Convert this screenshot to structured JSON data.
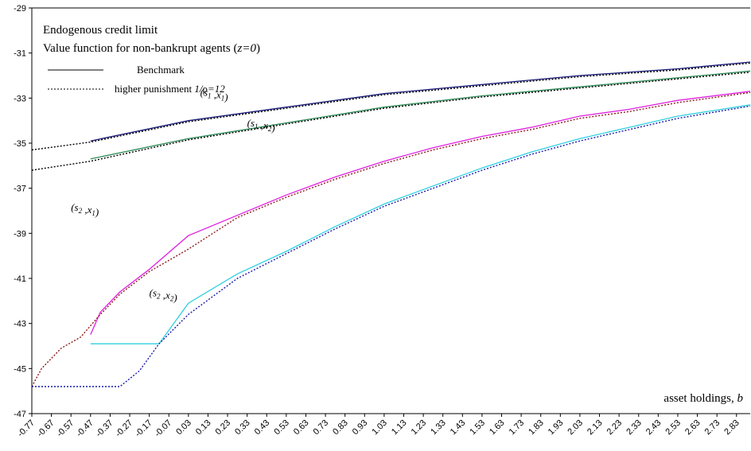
{
  "chart_data": {
    "type": "line",
    "title": "Endogenous credit limit",
    "subtitle_parts": [
      "Value function for non-bankrupt agents (",
      "z=0",
      ")"
    ],
    "xlabel_parts": [
      "asset holdings, ",
      "b"
    ],
    "ylabel": "",
    "xlim": [
      -0.77,
      2.9
    ],
    "ylim": [
      -47,
      -29
    ],
    "y_ticks": [
      -29,
      -31,
      -33,
      -35,
      -37,
      -39,
      -41,
      -43,
      -45,
      -47
    ],
    "x_ticks": [
      "-0.77",
      "-0.67",
      "-0.57",
      "-0.47",
      "-0.37",
      "-0.27",
      "-0.17",
      "-0.07",
      "0.03",
      "0.13",
      "0.23",
      "0.33",
      "0.43",
      "0.53",
      "0.63",
      "0.73",
      "0.83",
      "0.93",
      "1.03",
      "1.13",
      "1.23",
      "1.33",
      "1.43",
      "1.53",
      "1.63",
      "1.73",
      "1.83",
      "1.93",
      "2.03",
      "2.13",
      "2.23",
      "2.33",
      "2.43",
      "2.53",
      "2.63",
      "2.73",
      "2.83"
    ],
    "legend": {
      "placement": "top-left",
      "entries": [
        {
          "style": "solid",
          "label_parts": [
            "Benchmark"
          ]
        },
        {
          "style": "dotted",
          "label_parts": [
            "higher punishment ",
            "1/",
            "ρ",
            "=12"
          ]
        }
      ]
    },
    "colors": {
      "s1x1": "#1a1a7a",
      "s1x2": "#2e8b57",
      "s2x1": "#e020e0",
      "s2x2": "#30d0e0",
      "dotted_s2x2": "#1a1aaa",
      "dotted_s2x1": "#8b1a1a",
      "dotted_black": "#000000"
    },
    "series": [
      {
        "name": "(s1, x1)",
        "style": "solid",
        "color_key": "s1x1",
        "points": [
          [
            -0.47,
            -34.9
          ],
          [
            0.03,
            -34.0
          ],
          [
            0.53,
            -33.4
          ],
          [
            1.03,
            -32.8
          ],
          [
            1.53,
            -32.4
          ],
          [
            2.03,
            -32.0
          ],
          [
            2.53,
            -31.7
          ],
          [
            2.9,
            -31.4
          ]
        ]
      },
      {
        "name": "(s1, x2)",
        "style": "solid",
        "color_key": "s1x2",
        "points": [
          [
            -0.47,
            -35.7
          ],
          [
            0.03,
            -34.8
          ],
          [
            0.53,
            -34.1
          ],
          [
            1.03,
            -33.4
          ],
          [
            1.53,
            -32.9
          ],
          [
            2.03,
            -32.5
          ],
          [
            2.53,
            -32.1
          ],
          [
            2.9,
            -31.8
          ]
        ]
      },
      {
        "name": "(s2, x1)",
        "style": "solid",
        "color_key": "s2x1",
        "points": [
          [
            -0.47,
            -43.5
          ],
          [
            -0.42,
            -42.5
          ],
          [
            -0.32,
            -41.6
          ],
          [
            -0.17,
            -40.6
          ],
          [
            0.03,
            -39.1
          ],
          [
            0.28,
            -38.2
          ],
          [
            0.53,
            -37.3
          ],
          [
            0.78,
            -36.5
          ],
          [
            1.03,
            -35.8
          ],
          [
            1.28,
            -35.2
          ],
          [
            1.53,
            -34.7
          ],
          [
            1.78,
            -34.3
          ],
          [
            2.03,
            -33.8
          ],
          [
            2.28,
            -33.5
          ],
          [
            2.53,
            -33.1
          ],
          [
            2.9,
            -32.7
          ]
        ]
      },
      {
        "name": "(s2, x2)",
        "style": "solid",
        "color_key": "s2x2",
        "points": [
          [
            -0.47,
            -43.9
          ],
          [
            -0.12,
            -43.9
          ],
          [
            0.03,
            -42.1
          ],
          [
            0.28,
            -40.8
          ],
          [
            0.53,
            -39.8
          ],
          [
            0.78,
            -38.7
          ],
          [
            1.03,
            -37.7
          ],
          [
            1.28,
            -36.9
          ],
          [
            1.53,
            -36.1
          ],
          [
            1.78,
            -35.4
          ],
          [
            2.03,
            -34.8
          ],
          [
            2.28,
            -34.3
          ],
          [
            2.53,
            -33.8
          ],
          [
            2.9,
            -33.3
          ]
        ]
      },
      {
        "name": "(s1, x1) higher punishment",
        "style": "dotted",
        "color_key": "dotted_black",
        "points": [
          [
            -0.77,
            -35.3
          ],
          [
            -0.47,
            -34.95
          ],
          [
            0.03,
            -34.05
          ],
          [
            0.53,
            -33.45
          ],
          [
            1.03,
            -32.85
          ],
          [
            1.53,
            -32.45
          ],
          [
            2.03,
            -32.05
          ],
          [
            2.53,
            -31.75
          ],
          [
            2.9,
            -31.45
          ]
        ]
      },
      {
        "name": "(s1, x2) higher punishment",
        "style": "dotted",
        "color_key": "dotted_black",
        "points": [
          [
            -0.77,
            -36.2
          ],
          [
            -0.47,
            -35.8
          ],
          [
            0.03,
            -34.85
          ],
          [
            0.53,
            -34.15
          ],
          [
            1.03,
            -33.45
          ],
          [
            1.53,
            -32.95
          ],
          [
            2.03,
            -32.55
          ],
          [
            2.53,
            -32.15
          ],
          [
            2.9,
            -31.85
          ]
        ]
      },
      {
        "name": "(s2, x1) higher punishment",
        "style": "dotted",
        "color_key": "dotted_s2x1",
        "points": [
          [
            -0.77,
            -45.8
          ],
          [
            -0.72,
            -45.0
          ],
          [
            -0.62,
            -44.1
          ],
          [
            -0.52,
            -43.6
          ],
          [
            -0.42,
            -42.6
          ],
          [
            -0.32,
            -41.7
          ],
          [
            -0.17,
            -40.7
          ],
          [
            0.03,
            -39.7
          ],
          [
            0.28,
            -38.3
          ],
          [
            0.53,
            -37.4
          ],
          [
            0.78,
            -36.6
          ],
          [
            1.03,
            -35.9
          ],
          [
            1.28,
            -35.3
          ],
          [
            1.53,
            -34.8
          ],
          [
            1.78,
            -34.4
          ],
          [
            2.03,
            -33.9
          ],
          [
            2.28,
            -33.6
          ],
          [
            2.53,
            -33.2
          ],
          [
            2.9,
            -32.75
          ]
        ]
      },
      {
        "name": "(s2, x2) higher punishment",
        "style": "dotted",
        "color_key": "dotted_s2x2",
        "points": [
          [
            -0.77,
            -45.8
          ],
          [
            -0.32,
            -45.8
          ],
          [
            -0.22,
            -45.1
          ],
          [
            -0.12,
            -43.9
          ],
          [
            0.03,
            -42.6
          ],
          [
            0.28,
            -41.0
          ],
          [
            0.53,
            -39.9
          ],
          [
            0.78,
            -38.8
          ],
          [
            1.03,
            -37.8
          ],
          [
            1.28,
            -37.0
          ],
          [
            1.53,
            -36.2
          ],
          [
            1.78,
            -35.5
          ],
          [
            2.03,
            -34.9
          ],
          [
            2.28,
            -34.4
          ],
          [
            2.53,
            -33.9
          ],
          [
            2.9,
            -33.35
          ]
        ]
      }
    ],
    "annotations": [
      {
        "at": [
          0.09,
          -32.9
        ],
        "base1": "s",
        "sub1": "1",
        "base2": "x",
        "sub2": "1"
      },
      {
        "at": [
          0.33,
          -34.25
        ],
        "base1": "s",
        "sub1": "1",
        "base2": "x",
        "sub2": "2"
      },
      {
        "at": [
          -0.57,
          -38.0
        ],
        "base1": "s",
        "sub1": "2",
        "base2": "x",
        "sub2": "1"
      },
      {
        "at": [
          -0.17,
          -41.8
        ],
        "base1": "s",
        "sub1": "2",
        "base2": "x",
        "sub2": "2"
      }
    ]
  }
}
